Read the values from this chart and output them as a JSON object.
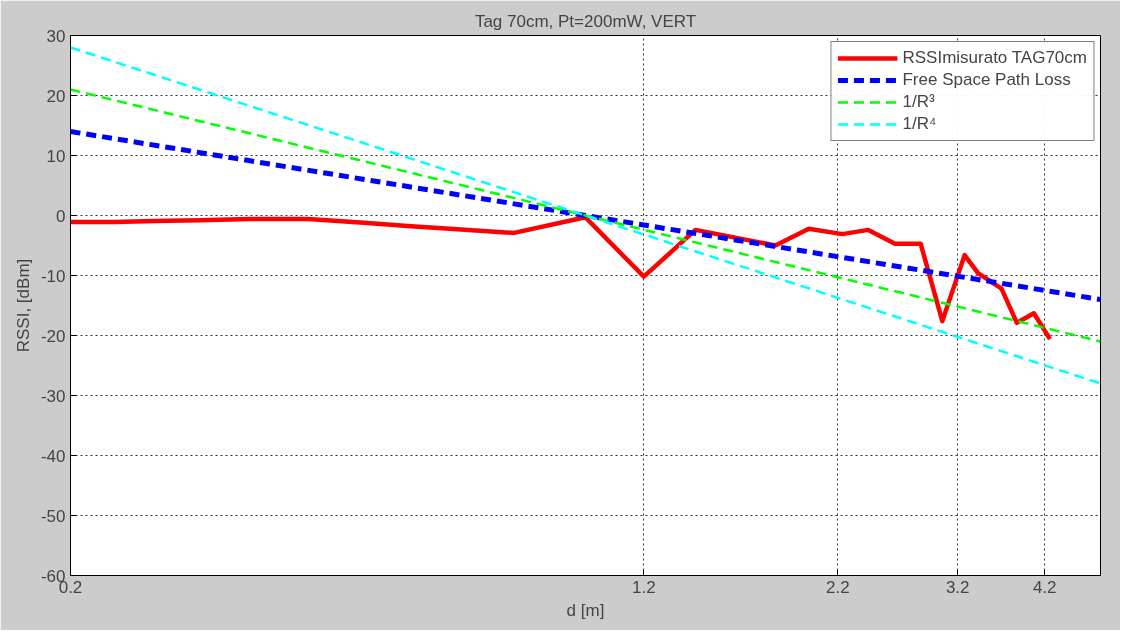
{
  "chart_data": {
    "type": "line",
    "title": "Tag 70cm, Pt=200mW, VERT",
    "xlabel": "d [m]",
    "ylabel": "RSSI, [dBm]",
    "log": "x",
    "xlim": [
      0.2,
      5
    ],
    "ylim": [
      -60,
      30
    ],
    "xticks": [
      0.2,
      1.2,
      2.2,
      3.2,
      4.2
    ],
    "yticks": [
      -60,
      -50,
      -40,
      -30,
      -20,
      -10,
      0,
      10,
      20,
      30
    ],
    "grid": true,
    "legend": "top right",
    "series": [
      {
        "name": "RSSImisurato TAG70cm",
        "color": "#ff0000",
        "line_style": "solid",
        "x": [
          0.2,
          0.23,
          0.26,
          0.3,
          0.35,
          0.42,
          0.5,
          0.58,
          0.67,
          0.77,
          0.8,
          1.0,
          1.2,
          1.41,
          1.81,
          2.01,
          2.23,
          2.42,
          2.63,
          2.85,
          3.05,
          3.27,
          3.41,
          3.67,
          3.85,
          4.06,
          4.27
        ],
        "values": [
          -1.1,
          -1.1,
          -0.9,
          -0.8,
          -0.6,
          -0.6,
          -1.2,
          -1.8,
          -2.3,
          -2.8,
          -2.9,
          -0.3,
          -10.2,
          -2.4,
          -5.0,
          -2.2,
          -3.1,
          -2.4,
          -4.7,
          -4.7,
          -17.6,
          -6.6,
          -9.6,
          -12.2,
          -17.9,
          -16.3,
          -20.6
        ]
      },
      {
        "name": "Free Space Path Loss",
        "color": "#0000ff",
        "line_style": "dashed",
        "x": [
          0.2,
          5
        ],
        "values": [
          14,
          -14
        ]
      },
      {
        "name": "1/R³",
        "color": "#00ff00",
        "line_style": "dashed",
        "x": [
          0.2,
          5
        ],
        "values": [
          21,
          -21
        ]
      },
      {
        "name": "1/R⁴",
        "color": "#00ffff",
        "line_style": "dashed",
        "x": [
          0.2,
          5
        ],
        "values": [
          28,
          -28
        ]
      }
    ]
  }
}
